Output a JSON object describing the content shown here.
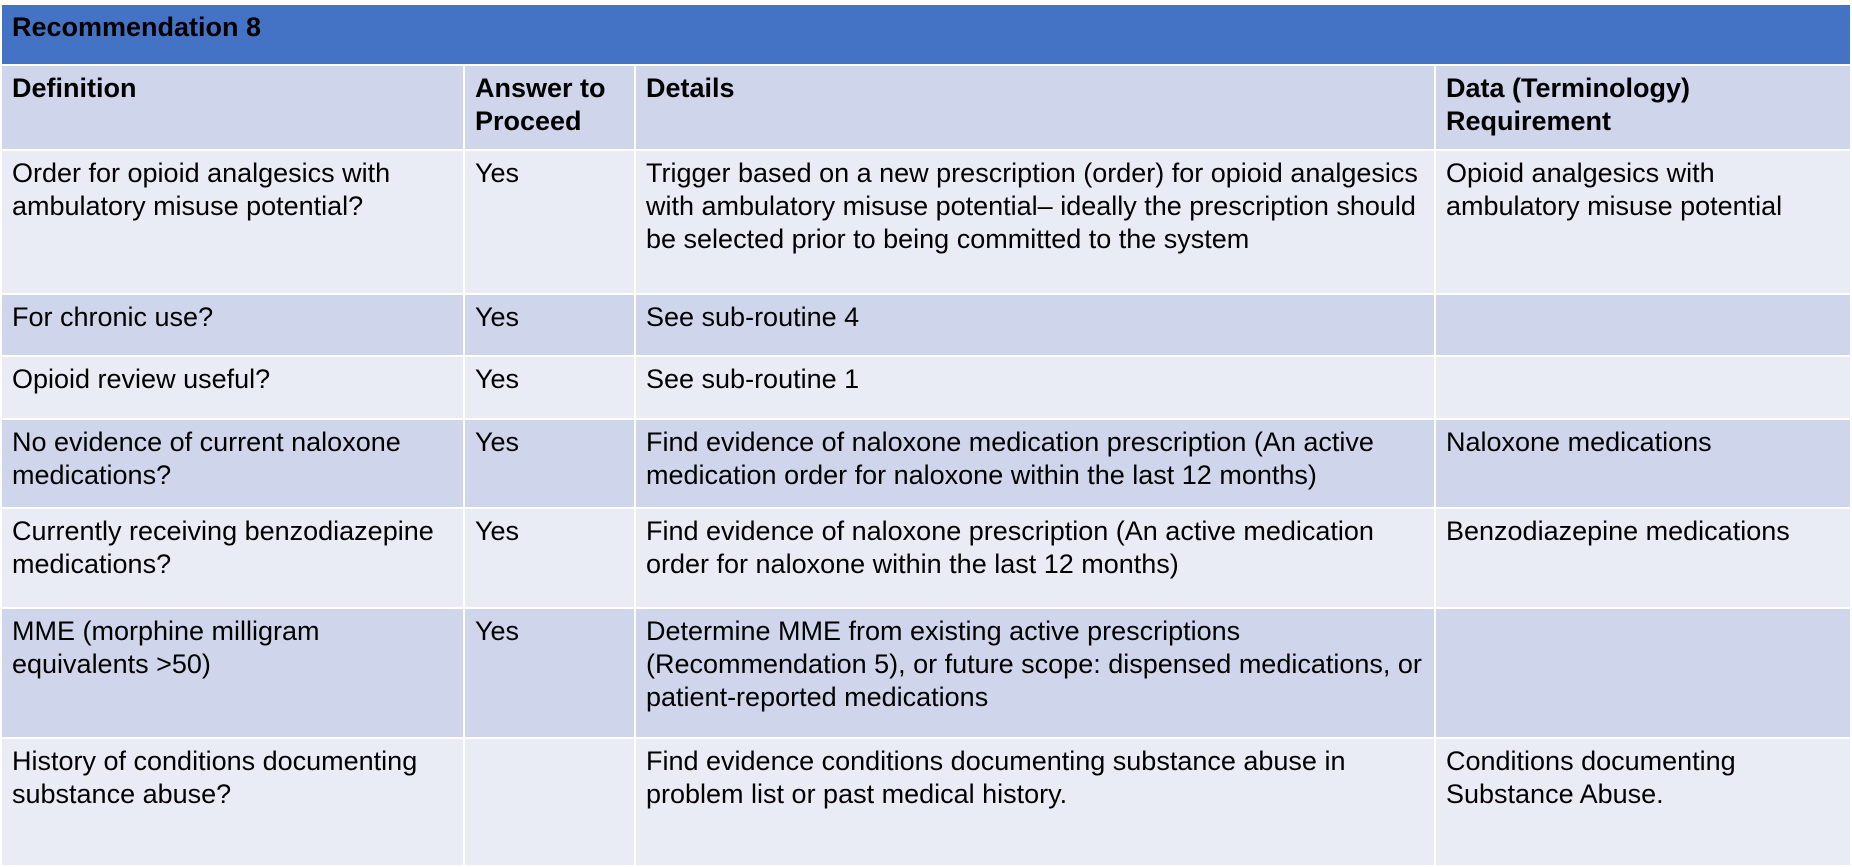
{
  "table": {
    "title": "Recommendation 8",
    "headers": {
      "definition": "Definition",
      "answer": "Answer to Proceed",
      "details": "Details",
      "data": "Data (Terminology) Requirement"
    },
    "rows": [
      {
        "definition": "Order for opioid analgesics with ambulatory misuse potential?",
        "answer": "Yes",
        "details": "Trigger based on a new prescription (order) for opioid analgesics with ambulatory misuse potential– ideally the prescription should be selected prior to being committed to the system",
        "data": "Opioid analgesics with ambulatory misuse potential"
      },
      {
        "definition": "For chronic use?",
        "answer": "Yes",
        "details": "See sub-routine 4",
        "data": ""
      },
      {
        "definition": "Opioid review useful?",
        "answer": "Yes",
        "details": "See sub-routine 1",
        "data": ""
      },
      {
        "definition": "No evidence of current naloxone medications?",
        "answer": "Yes",
        "details": "Find evidence of naloxone medication prescription (An active medication order for naloxone within the last 12 months)",
        "data": "Naloxone medications"
      },
      {
        "definition": "Currently receiving benzodiazepine medications?",
        "answer": "Yes",
        "details": "Find evidence of naloxone prescription (An active medication order for naloxone within the last 12 months)",
        "data": "Benzodiazepine medications"
      },
      {
        "definition": "MME (morphine milligram equivalents >50)",
        "answer": "Yes",
        "details": "Determine MME from existing active prescriptions (Recommendation 5), or future scope: dispensed medications, or patient-reported medications",
        "data": ""
      },
      {
        "definition": "History of conditions documenting substance abuse?",
        "answer": "",
        "details": "Find evidence conditions documenting substance abuse in problem list or past medical history.",
        "data": "Conditions documenting Substance Abuse."
      }
    ],
    "colors": {
      "title_bar": "#4472c4",
      "header_and_even_rows": "#cfd5ea",
      "odd_rows": "#e9ebf5"
    }
  }
}
